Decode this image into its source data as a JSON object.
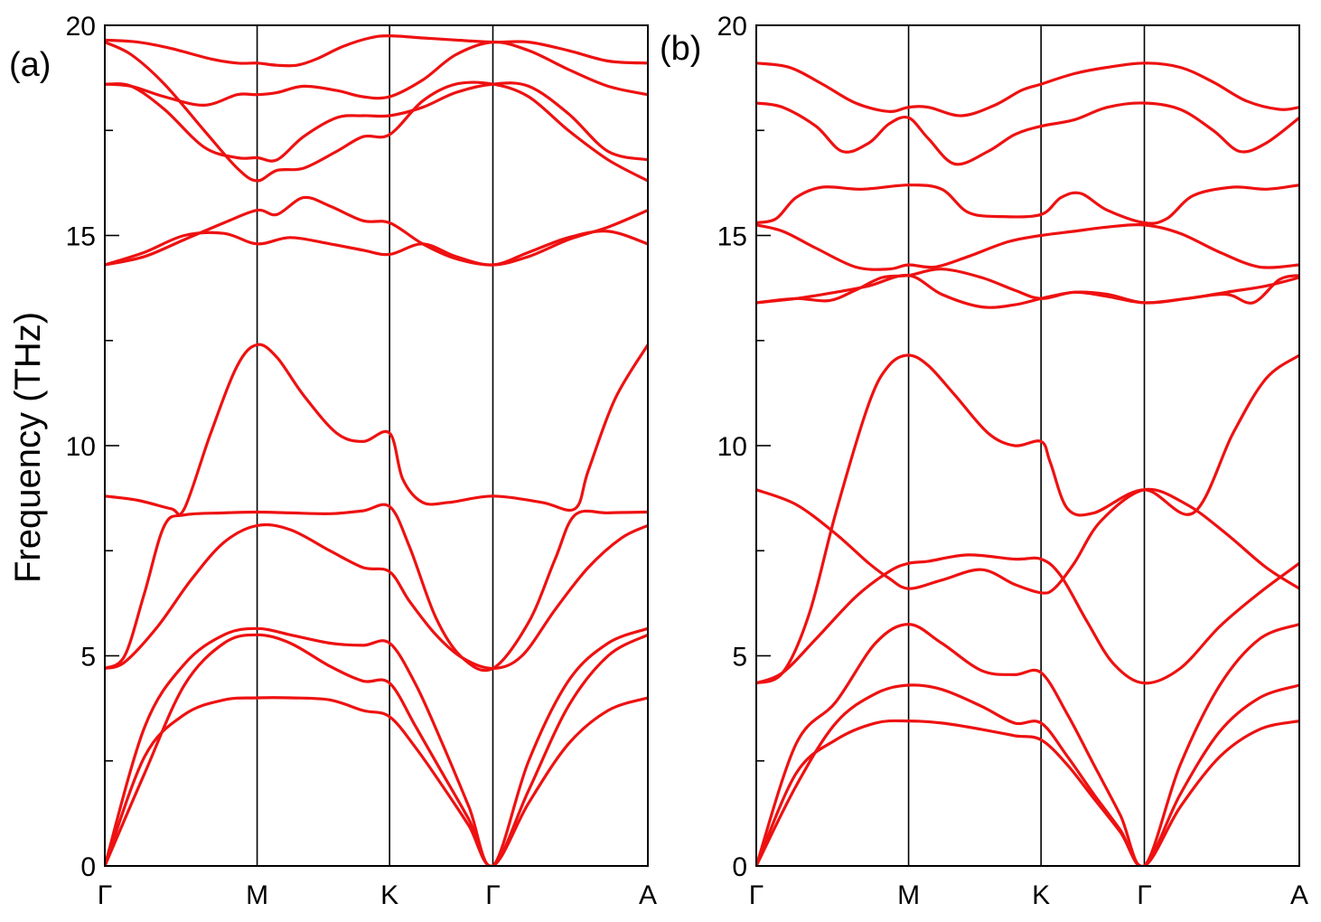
{
  "y_label": "Frequency (THz)",
  "colors": {
    "band": "#ee1111",
    "axis": "#000000"
  },
  "chart_data": [
    {
      "type": "line",
      "panel_label": "(a)",
      "ylabel": "Frequency (THz)",
      "ylim": [
        0,
        20
      ],
      "yticks_major": [
        0,
        5,
        10,
        15,
        20
      ],
      "yticks_minor": [
        2.5,
        7.5,
        12.5,
        17.5
      ],
      "ytick_labels": [
        "0",
        "5",
        "10",
        "15",
        "20"
      ],
      "xlim": [
        0,
        4.1
      ],
      "high_symmetry_points": [
        {
          "label": "Γ",
          "x": 0
        },
        {
          "label": "M",
          "x": 1.15
        },
        {
          "label": "K",
          "x": 2.15
        },
        {
          "label": "Γ",
          "x": 2.93
        },
        {
          "label": "A",
          "x": 4.1
        }
      ],
      "grid": false,
      "series": [
        {
          "x": [
            0,
            0.3,
            0.6,
            0.9,
            1.15,
            1.4,
            1.7,
            1.95,
            2.15,
            2.35,
            2.55,
            2.75,
            2.93,
            3.2,
            3.5,
            3.8,
            4.1
          ],
          "values": [
            0,
            2.6,
            3.6,
            3.95,
            4.0,
            4.0,
            3.95,
            3.7,
            3.55,
            2.8,
            1.9,
            0.95,
            0,
            1.5,
            2.9,
            3.7,
            4.0
          ]
        },
        {
          "x": [
            0,
            0.3,
            0.6,
            0.9,
            1.15,
            1.4,
            1.7,
            1.95,
            2.15,
            2.35,
            2.55,
            2.75,
            2.93,
            3.2,
            3.5,
            3.8,
            4.1
          ],
          "values": [
            0,
            2.2,
            4.3,
            5.3,
            5.5,
            5.3,
            4.75,
            4.4,
            4.35,
            3.3,
            2.2,
            1.1,
            0,
            1.8,
            3.8,
            5.0,
            5.5
          ]
        },
        {
          "x": [
            0,
            0.3,
            0.6,
            0.9,
            1.15,
            1.4,
            1.7,
            1.95,
            2.15,
            2.35,
            2.55,
            2.75,
            2.93,
            3.2,
            3.5,
            3.8,
            4.1
          ],
          "values": [
            0,
            3.3,
            4.8,
            5.5,
            5.65,
            5.5,
            5.3,
            5.25,
            5.3,
            4.3,
            2.9,
            1.4,
            0,
            2.5,
            4.4,
            5.3,
            5.65
          ]
        },
        {
          "x": [
            0,
            0.15,
            0.4,
            0.65,
            0.9,
            1.15,
            1.4,
            1.7,
            1.95,
            2.15,
            2.3,
            2.5,
            2.7,
            2.93,
            3.15,
            3.4,
            3.65,
            3.9,
            4.1
          ],
          "values": [
            4.7,
            4.85,
            5.7,
            6.8,
            7.7,
            8.1,
            8.0,
            7.5,
            7.1,
            7.0,
            6.3,
            5.5,
            4.95,
            4.7,
            5.0,
            6.1,
            7.1,
            7.8,
            8.1
          ]
        },
        {
          "x": [
            0,
            0.15,
            0.3,
            0.45,
            0.6,
            0.9,
            1.15,
            1.4,
            1.7,
            1.95,
            2.15,
            2.3,
            2.5,
            2.7,
            2.93,
            3.2,
            3.4,
            3.55,
            3.8,
            4.1
          ],
          "values": [
            4.7,
            5.0,
            6.5,
            8.1,
            8.35,
            8.4,
            8.42,
            8.4,
            8.38,
            8.45,
            8.55,
            7.6,
            5.9,
            4.95,
            4.7,
            5.8,
            7.3,
            8.35,
            8.4,
            8.42
          ]
        },
        {
          "x": [
            0,
            0.25,
            0.5,
            0.6,
            0.8,
            1.0,
            1.15,
            1.3,
            1.5,
            1.75,
            1.95,
            2.15,
            2.25,
            2.4,
            2.6,
            2.93,
            3.3,
            3.55,
            3.65,
            3.85,
            4.1
          ],
          "values": [
            8.8,
            8.7,
            8.5,
            8.5,
            10.3,
            11.9,
            12.4,
            12.1,
            11.2,
            10.3,
            10.1,
            10.3,
            9.2,
            8.65,
            8.65,
            8.8,
            8.65,
            8.5,
            9.4,
            11.1,
            12.4
          ]
        },
        {
          "x": [
            0,
            0.3,
            0.6,
            0.9,
            1.15,
            1.4,
            1.7,
            1.95,
            2.15,
            2.4,
            2.65,
            2.93,
            3.2,
            3.5,
            3.8,
            4.1
          ],
          "values": [
            14.3,
            14.6,
            15.0,
            15.05,
            14.8,
            14.95,
            14.8,
            14.65,
            14.55,
            14.8,
            14.5,
            14.3,
            14.6,
            14.95,
            15.1,
            14.8
          ]
        },
        {
          "x": [
            0,
            0.3,
            0.6,
            0.9,
            1.15,
            1.3,
            1.5,
            1.7,
            1.95,
            2.15,
            2.4,
            2.65,
            2.93,
            3.2,
            3.5,
            3.8,
            4.1
          ],
          "values": [
            14.3,
            14.5,
            14.9,
            15.3,
            15.6,
            15.5,
            15.9,
            15.7,
            15.35,
            15.3,
            14.8,
            14.45,
            14.3,
            14.5,
            14.9,
            15.2,
            15.6
          ]
        },
        {
          "x": [
            0,
            0.2,
            0.45,
            0.75,
            1.0,
            1.15,
            1.3,
            1.5,
            1.75,
            1.95,
            2.15,
            2.4,
            2.65,
            2.93,
            3.2,
            3.5,
            3.8,
            4.1
          ],
          "values": [
            19.6,
            19.3,
            18.6,
            17.5,
            16.6,
            16.3,
            16.55,
            16.6,
            17.0,
            17.35,
            17.4,
            18.2,
            18.6,
            18.6,
            18.3,
            17.5,
            16.8,
            16.3
          ]
        },
        {
          "x": [
            0,
            0.2,
            0.45,
            0.75,
            1.0,
            1.15,
            1.3,
            1.5,
            1.75,
            1.95,
            2.15,
            2.4,
            2.65,
            2.93,
            3.2,
            3.5,
            3.8,
            4.1
          ],
          "values": [
            18.6,
            18.55,
            18.0,
            17.1,
            16.85,
            16.85,
            16.8,
            17.35,
            17.8,
            17.85,
            17.85,
            18.05,
            18.4,
            18.6,
            18.55,
            17.9,
            17.0,
            16.8
          ]
        },
        {
          "x": [
            0,
            0.2,
            0.45,
            0.75,
            1.0,
            1.15,
            1.3,
            1.5,
            1.75,
            1.95,
            2.15,
            2.4,
            2.65,
            2.93,
            3.2,
            3.5,
            3.8,
            4.1
          ],
          "values": [
            18.6,
            18.55,
            18.3,
            18.1,
            18.35,
            18.35,
            18.4,
            18.55,
            18.45,
            18.3,
            18.3,
            18.7,
            19.3,
            19.6,
            19.4,
            18.95,
            18.55,
            18.35
          ]
        },
        {
          "x": [
            0,
            0.25,
            0.5,
            0.8,
            1.0,
            1.15,
            1.3,
            1.45,
            1.6,
            1.8,
            2.0,
            2.15,
            2.4,
            2.65,
            2.93,
            3.2,
            3.5,
            3.8,
            4.1
          ],
          "values": [
            19.65,
            19.6,
            19.45,
            19.2,
            19.1,
            19.1,
            19.05,
            19.05,
            19.2,
            19.5,
            19.7,
            19.75,
            19.7,
            19.65,
            19.6,
            19.6,
            19.4,
            19.15,
            19.1
          ]
        }
      ]
    },
    {
      "type": "line",
      "panel_label": "(b)",
      "ylim": [
        0,
        20
      ],
      "yticks_major": [
        0,
        5,
        10,
        15,
        20
      ],
      "yticks_minor": [
        2.5,
        7.5,
        12.5,
        17.5
      ],
      "ytick_labels": [
        "0",
        "5",
        "10",
        "15",
        "20"
      ],
      "xlim": [
        0,
        4.1
      ],
      "high_symmetry_points": [
        {
          "label": "Γ",
          "x": 0
        },
        {
          "label": "M",
          "x": 1.15
        },
        {
          "label": "K",
          "x": 2.15
        },
        {
          "label": "Γ",
          "x": 2.93
        },
        {
          "label": "A",
          "x": 4.1
        }
      ],
      "grid": false,
      "series": [
        {
          "x": [
            0,
            0.3,
            0.6,
            0.9,
            1.15,
            1.4,
            1.7,
            1.95,
            2.15,
            2.35,
            2.55,
            2.75,
            2.93,
            3.2,
            3.5,
            3.8,
            4.1
          ],
          "values": [
            0,
            2.2,
            3.0,
            3.4,
            3.45,
            3.4,
            3.25,
            3.1,
            3.0,
            2.4,
            1.6,
            0.8,
            0,
            1.4,
            2.6,
            3.25,
            3.45
          ]
        },
        {
          "x": [
            0,
            0.3,
            0.6,
            0.9,
            1.15,
            1.4,
            1.7,
            1.95,
            2.15,
            2.35,
            2.55,
            2.75,
            2.93,
            3.2,
            3.5,
            3.8,
            4.1
          ],
          "values": [
            0,
            1.9,
            3.4,
            4.1,
            4.3,
            4.2,
            3.8,
            3.4,
            3.4,
            2.6,
            1.7,
            0.85,
            0,
            1.7,
            3.2,
            4.0,
            4.3
          ]
        },
        {
          "x": [
            0,
            0.3,
            0.6,
            0.9,
            1.15,
            1.4,
            1.7,
            1.95,
            2.15,
            2.35,
            2.55,
            2.75,
            2.93,
            3.2,
            3.5,
            3.8,
            4.1
          ],
          "values": [
            0,
            2.9,
            3.9,
            5.3,
            5.75,
            5.3,
            4.65,
            4.55,
            4.6,
            3.6,
            2.4,
            1.2,
            0,
            2.4,
            4.3,
            5.4,
            5.75
          ]
        },
        {
          "x": [
            0,
            0.2,
            0.45,
            0.75,
            1.0,
            1.15,
            1.3,
            1.6,
            1.95,
            2.15,
            2.3,
            2.5,
            2.7,
            2.93,
            3.2,
            3.5,
            3.8,
            4.1
          ],
          "values": [
            4.35,
            4.6,
            5.4,
            6.4,
            7.0,
            7.2,
            7.25,
            7.4,
            7.3,
            7.3,
            6.9,
            5.8,
            4.8,
            4.35,
            4.7,
            5.7,
            6.5,
            7.2
          ]
        },
        {
          "x": [
            0,
            0.3,
            0.6,
            0.85,
            1.0,
            1.15,
            1.4,
            1.7,
            1.95,
            2.15,
            2.25,
            2.4,
            2.6,
            2.93,
            3.25,
            3.55,
            3.85,
            4.1
          ],
          "values": [
            8.95,
            8.6,
            7.9,
            7.2,
            6.85,
            6.6,
            6.8,
            7.05,
            6.7,
            6.5,
            6.6,
            7.2,
            8.2,
            8.95,
            8.6,
            7.9,
            7.1,
            6.6
          ]
        },
        {
          "x": [
            0,
            0.2,
            0.4,
            0.6,
            0.85,
            1.0,
            1.15,
            1.3,
            1.5,
            1.75,
            1.95,
            2.15,
            2.22,
            2.35,
            2.55,
            2.93,
            3.3,
            3.6,
            3.85,
            4.1
          ],
          "values": [
            4.35,
            4.6,
            6.0,
            8.4,
            11.0,
            11.9,
            12.15,
            11.9,
            11.2,
            10.3,
            10.0,
            10.1,
            9.6,
            8.5,
            8.4,
            8.95,
            8.4,
            10.3,
            11.6,
            12.15
          ]
        },
        {
          "x": [
            0,
            0.3,
            0.6,
            0.85,
            1.15,
            1.4,
            1.7,
            1.95,
            2.15,
            2.4,
            2.65,
            2.93,
            3.25,
            3.55,
            3.85,
            4.1
          ],
          "values": [
            13.4,
            13.5,
            13.65,
            13.8,
            14.05,
            13.6,
            13.3,
            13.35,
            13.5,
            13.65,
            13.6,
            13.4,
            13.5,
            13.65,
            13.8,
            14.0
          ]
        },
        {
          "x": [
            0,
            0.3,
            0.55,
            0.75,
            0.95,
            1.15,
            1.4,
            1.7,
            1.95,
            2.15,
            2.4,
            2.65,
            2.93,
            3.25,
            3.55,
            3.75,
            3.95,
            4.1
          ],
          "values": [
            13.4,
            13.5,
            13.45,
            13.7,
            14.0,
            14.05,
            14.2,
            14.0,
            13.7,
            13.5,
            13.65,
            13.55,
            13.4,
            13.5,
            13.6,
            13.4,
            13.95,
            14.05
          ]
        },
        {
          "x": [
            0,
            0.2,
            0.45,
            0.75,
            1.0,
            1.15,
            1.35,
            1.6,
            1.9,
            2.15,
            2.4,
            2.65,
            2.93,
            3.2,
            3.5,
            3.8,
            4.1
          ],
          "values": [
            15.25,
            15.1,
            14.7,
            14.25,
            14.2,
            14.3,
            14.25,
            14.5,
            14.85,
            15.0,
            15.1,
            15.2,
            15.25,
            15.05,
            14.6,
            14.25,
            14.3
          ]
        },
        {
          "x": [
            0,
            0.15,
            0.3,
            0.5,
            0.8,
            1.15,
            1.4,
            1.6,
            1.85,
            2.15,
            2.3,
            2.45,
            2.65,
            2.93,
            3.1,
            3.3,
            3.6,
            3.85,
            4.1
          ],
          "values": [
            15.3,
            15.4,
            15.9,
            16.15,
            16.1,
            16.2,
            16.1,
            15.55,
            15.45,
            15.5,
            15.9,
            16.0,
            15.6,
            15.3,
            15.4,
            15.95,
            16.15,
            16.1,
            16.2
          ]
        },
        {
          "x": [
            0,
            0.2,
            0.45,
            0.65,
            0.85,
            1.0,
            1.15,
            1.3,
            1.5,
            1.75,
            1.95,
            2.15,
            2.4,
            2.65,
            2.93,
            3.2,
            3.45,
            3.65,
            3.85,
            4.1
          ],
          "values": [
            18.15,
            18.05,
            17.6,
            17.0,
            17.2,
            17.65,
            17.8,
            17.3,
            16.7,
            17.0,
            17.4,
            17.6,
            17.75,
            18.05,
            18.15,
            18.0,
            17.5,
            17.0,
            17.2,
            17.8
          ]
        },
        {
          "x": [
            0,
            0.25,
            0.5,
            0.75,
            1.0,
            1.15,
            1.3,
            1.55,
            1.8,
            2.0,
            2.15,
            2.4,
            2.65,
            2.93,
            3.2,
            3.45,
            3.7,
            3.95,
            4.1
          ],
          "values": [
            19.1,
            19.0,
            18.6,
            18.15,
            17.95,
            18.05,
            18.05,
            17.85,
            18.1,
            18.45,
            18.6,
            18.85,
            19.0,
            19.1,
            19.0,
            18.65,
            18.2,
            18.0,
            18.05
          ]
        }
      ]
    }
  ]
}
